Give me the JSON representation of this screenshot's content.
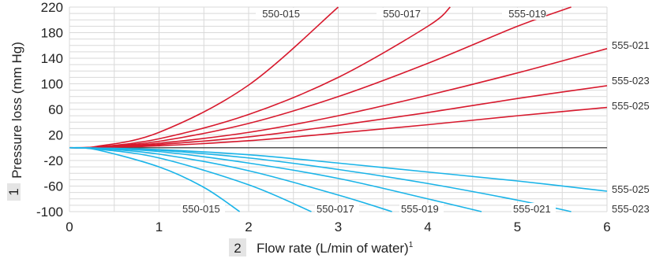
{
  "chart_data": {
    "type": "line",
    "xlabel": "Flow rate (L/min of water)",
    "xlabel_superscript": "1",
    "xlabel_number": "2",
    "ylabel": "Pressure loss (mm Hg)",
    "ylabel_number": "1",
    "xlim": [
      0,
      6
    ],
    "ylim": [
      -100,
      220
    ],
    "x_ticks": [
      0,
      1,
      2,
      3,
      4,
      5,
      6
    ],
    "y_ticks": [
      -100,
      -60,
      -20,
      20,
      60,
      100,
      140,
      180,
      220
    ],
    "grid": true,
    "zero_line": 0,
    "colors": {
      "pressure": "#d7192d",
      "return": "#1ab4e8",
      "zero": "#555555",
      "grid": "#d9d9d9"
    },
    "series": [
      {
        "name": "550-015",
        "group": "pressure",
        "x": [
          0,
          0.3,
          1.0,
          2.0,
          3.0
        ],
        "y": [
          0,
          2,
          24,
          98,
          220
        ]
      },
      {
        "name": "550-017",
        "group": "pressure",
        "x": [
          0,
          0.3,
          1.0,
          2.0,
          3.0,
          4.0,
          4.25
        ],
        "y": [
          0,
          1,
          14,
          52,
          110,
          190,
          220
        ]
      },
      {
        "name": "555-019",
        "group": "pressure",
        "x": [
          0,
          0.3,
          1.0,
          2.0,
          3.0,
          4.0,
          5.0,
          5.6
        ],
        "y": [
          0,
          1,
          10,
          38,
          80,
          132,
          190,
          220
        ]
      },
      {
        "name": "555-021",
        "group": "pressure",
        "x": [
          0,
          0.3,
          1.0,
          2.0,
          3.0,
          4.0,
          5.0,
          6.0
        ],
        "y": [
          0,
          0.5,
          7,
          24,
          50,
          82,
          117,
          155
        ]
      },
      {
        "name": "555-023",
        "group": "pressure",
        "x": [
          0,
          0.3,
          1.0,
          2.0,
          3.0,
          4.0,
          5.0,
          6.0
        ],
        "y": [
          0,
          0.5,
          5,
          17,
          35,
          55,
          77,
          97
        ]
      },
      {
        "name": "555-025",
        "group": "pressure",
        "x": [
          0,
          0.3,
          1.0,
          2.0,
          3.0,
          4.0,
          5.0,
          6.0
        ],
        "y": [
          0,
          0.3,
          3,
          11,
          23,
          36,
          50,
          63
        ]
      },
      {
        "name": "550-015",
        "group": "return",
        "x": [
          0,
          0.3,
          1.0,
          1.5,
          1.9
        ],
        "y": [
          0,
          -3,
          -30,
          -62,
          -100
        ]
      },
      {
        "name": "550-017",
        "group": "return",
        "x": [
          0,
          0.3,
          1.0,
          2.0,
          2.7
        ],
        "y": [
          0,
          -2,
          -16,
          -58,
          -100
        ]
      },
      {
        "name": "555-019",
        "group": "return",
        "x": [
          0,
          0.3,
          1.0,
          2.0,
          3.0,
          3.6
        ],
        "y": [
          0,
          -1,
          -10,
          -36,
          -74,
          -100
        ]
      },
      {
        "name": "555-021",
        "group": "return",
        "x": [
          0,
          0.3,
          1.0,
          2.0,
          3.0,
          4.0,
          4.6
        ],
        "y": [
          0,
          -1,
          -6,
          -24,
          -48,
          -80,
          -100
        ]
      },
      {
        "name": "555-023",
        "group": "return",
        "x": [
          0,
          0.3,
          1.0,
          2.0,
          3.0,
          4.0,
          5.0,
          5.6
        ],
        "y": [
          0,
          -0.5,
          -4,
          -16,
          -34,
          -56,
          -82,
          -100
        ]
      },
      {
        "name": "555-025",
        "group": "return",
        "x": [
          0,
          0.3,
          1.0,
          2.0,
          3.0,
          4.0,
          5.0,
          6.0
        ],
        "y": [
          0,
          -0.5,
          -3,
          -11,
          -24,
          -38,
          -52,
          -68
        ]
      }
    ],
    "annotations": [
      {
        "text": "550-015",
        "group": "pressure"
      },
      {
        "text": "550-017",
        "group": "pressure"
      },
      {
        "text": "555-019",
        "group": "pressure"
      },
      {
        "text": "555-021",
        "group": "pressure"
      },
      {
        "text": "555-023",
        "group": "pressure"
      },
      {
        "text": "555-025",
        "group": "pressure"
      },
      {
        "text": "550-015",
        "group": "return"
      },
      {
        "text": "550-017",
        "group": "return"
      },
      {
        "text": "555-019",
        "group": "return"
      },
      {
        "text": "555-021",
        "group": "return"
      },
      {
        "text": "555-025",
        "group": "return"
      },
      {
        "text": "555-023",
        "group": "return"
      }
    ]
  }
}
